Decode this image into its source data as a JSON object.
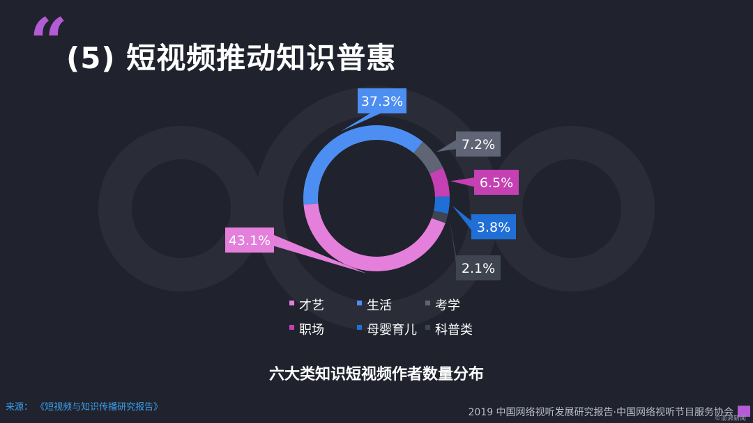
{
  "header": {
    "quote_mark": "“",
    "title": "(5) 短视频推动知识普惠"
  },
  "source": {
    "label": "来源：",
    "text": "《短视频与知识传播研究报告》"
  },
  "footer": {
    "text": "2019 中国网络视听发展研究报告·中国网络视听节目服务协会"
  },
  "watermark": {
    "text": "©澎湃新闻"
  },
  "chart_data": {
    "type": "pie",
    "title": "六大类知识短视频作者数量分布",
    "categories": [
      "才艺",
      "生活",
      "考学",
      "职场",
      "母婴育儿",
      "科普类"
    ],
    "values": [
      43.1,
      37.3,
      7.2,
      6.5,
      3.8,
      2.1
    ],
    "value_labels": [
      "43.1%",
      "37.3%",
      "7.2%",
      "6.5%",
      "3.8%",
      "2.1%"
    ],
    "colors": [
      "#e47fdb",
      "#4d8ef2",
      "#5f6574",
      "#c540b2",
      "#1f6fd6",
      "#3f4451"
    ],
    "legend_position": "bottom"
  }
}
